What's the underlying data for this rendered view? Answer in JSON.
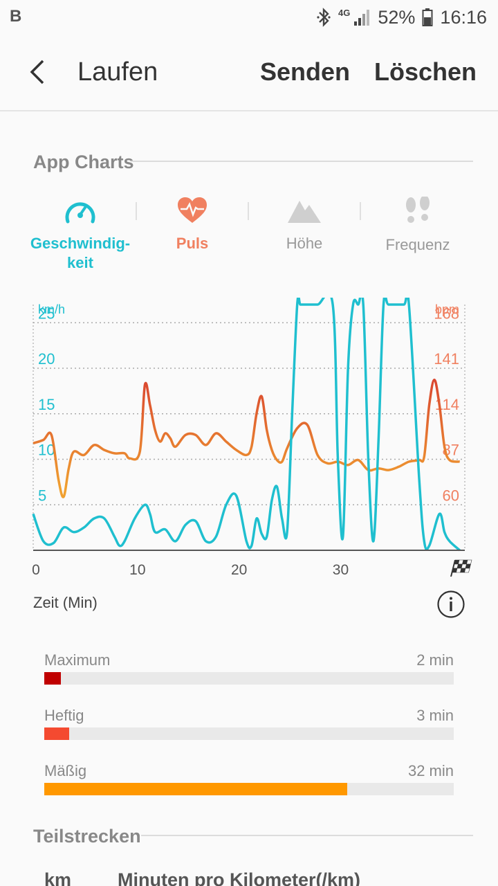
{
  "status": {
    "carrier_icon": "B",
    "network": "4G",
    "battery": "52%",
    "time": "16:16",
    "icons": [
      "bluetooth-icon",
      "signal-icon",
      "battery-icon"
    ]
  },
  "header": {
    "title": "Laufen",
    "send_label": "Senden",
    "delete_label": "Löschen",
    "back_icon": "chevron-left-icon"
  },
  "app_charts": {
    "section_title": "App Charts",
    "tabs": [
      {
        "label": "Geschwindig-\nkeit",
        "icon": "speedometer-icon",
        "color": "#1fbfcf",
        "active": true
      },
      {
        "label": "Puls",
        "icon": "heart-rate-icon",
        "color": "#f08060",
        "active": false
      },
      {
        "label": "Höhe",
        "icon": "mountain-icon",
        "color": "#999999",
        "active": false
      },
      {
        "label": "Frequenz",
        "icon": "footprints-icon",
        "color": "#999999",
        "active": false
      }
    ]
  },
  "chart_data": {
    "type": "line",
    "left_axis": {
      "unit": "km/h",
      "ticks": [
        5,
        10,
        15,
        20,
        25
      ],
      "range": [
        0,
        27
      ],
      "color": "#1fbfcf"
    },
    "right_axis": {
      "unit": "bpm",
      "ticks": [
        60,
        87,
        114,
        141,
        168
      ],
      "range": [
        33,
        180
      ],
      "color": "#f08060"
    },
    "x_axis": {
      "ticks": [
        0,
        10,
        20,
        30
      ],
      "range": [
        0,
        42.5
      ],
      "label": "Zeit (Min)",
      "finish_icon": "finish-flag-icon"
    },
    "grid": true,
    "series": [
      {
        "axis": "left",
        "color": "#1fbfcf",
        "x": [
          0,
          1,
          2,
          3,
          4,
          5,
          6,
          7,
          8,
          8.5,
          9,
          10,
          11,
          11.5,
          12,
          13,
          14,
          15,
          16,
          17,
          18,
          19,
          20,
          21,
          21.5,
          22,
          22.5,
          23,
          23.5,
          24,
          24.5,
          25,
          25.5,
          26,
          26.3,
          26.7,
          28,
          29.5,
          30,
          30.5,
          31,
          31.5,
          32,
          32.5,
          33,
          33.5,
          34,
          34.5,
          35,
          36.5,
          37,
          38,
          38.5,
          39,
          40,
          40.5,
          41,
          42
        ],
        "y": [
          4,
          1,
          0.8,
          2.5,
          2,
          2.5,
          3.5,
          3.5,
          1.5,
          0.5,
          1,
          3.5,
          5,
          4,
          2,
          2.3,
          1,
          2.8,
          3.2,
          1,
          1.5,
          5,
          6,
          1,
          0.5,
          3.5,
          1.8,
          1.5,
          5.5,
          7,
          3.5,
          2,
          15,
          27,
          27,
          27,
          27,
          27,
          10,
          1.5,
          20,
          27,
          27,
          27,
          10,
          1,
          12,
          27,
          27,
          27,
          27,
          8,
          1,
          0.5,
          4,
          2,
          1,
          0
        ]
      },
      {
        "axis": "right",
        "color": "#f0a030",
        "peak_color": "#d84030",
        "x": [
          0,
          1,
          1.8,
          2.5,
          3,
          3.5,
          4,
          5,
          6,
          7,
          8,
          9,
          9.5,
          10.5,
          11,
          11.5,
          12,
          12.5,
          13,
          13.5,
          14,
          15,
          16,
          17,
          18,
          19,
          20,
          21,
          21.5,
          22,
          22.5,
          23,
          23.5,
          24,
          24.5,
          25,
          26,
          27,
          28,
          29,
          30,
          31,
          32,
          33,
          34,
          35,
          36,
          37,
          38,
          38.5,
          39,
          39.5,
          40,
          40.5,
          41,
          42
        ],
        "y": [
          97,
          99,
          102,
          75,
          65,
          82,
          92,
          90,
          96,
          93,
          91,
          91,
          88,
          92,
          132,
          120,
          105,
          98,
          103,
          100,
          95,
          102,
          102,
          96,
          103,
          98,
          93,
          90,
          95,
          115,
          125,
          105,
          93,
          87,
          86,
          94,
          106,
          108,
          90,
          85,
          86,
          84,
          87,
          81,
          82,
          81,
          83,
          86,
          87,
          89,
          120,
          135,
          120,
          95,
          87,
          86
        ]
      }
    ]
  },
  "zones": [
    {
      "label": "Maximum",
      "value": "2 min",
      "fraction": 0.04,
      "color": "#c00000"
    },
    {
      "label": "Heftig",
      "value": "3 min",
      "fraction": 0.06,
      "color": "#f44a30"
    },
    {
      "label": "Mäßig",
      "value": "32 min",
      "fraction": 0.74,
      "color": "#ff9800"
    }
  ],
  "splits": {
    "section_title": "Teilstrecken",
    "col_km": "km",
    "col_pace": "Minuten pro Kilometer(/km)"
  }
}
